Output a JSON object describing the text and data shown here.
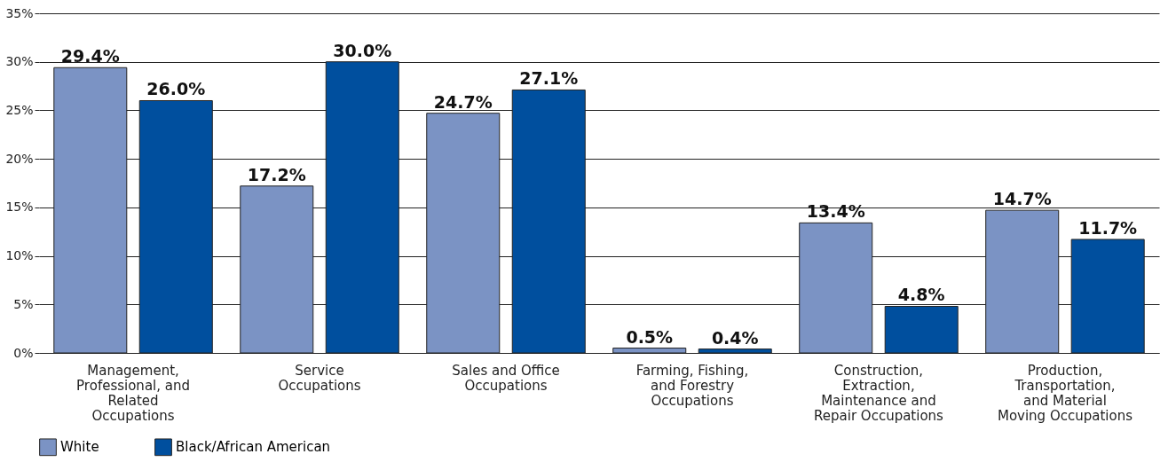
{
  "chart_data": {
    "type": "bar",
    "categories": [
      "Management, Professional, and Related Occupations",
      "Service Occupations",
      "Sales and Office Occupations",
      "Farming, Fishing, and Forestry Occupations",
      "Construction, Extraction, Maintenance and Repair Occupations",
      "Production, Transportation, and Material Moving Occupations"
    ],
    "series": [
      {
        "name": "White",
        "color": "#7b93c4",
        "values": [
          29.4,
          17.2,
          24.7,
          0.5,
          13.4,
          14.7
        ],
        "value_labels": [
          "29.4%",
          "17.2%",
          "24.7%",
          "0.5%",
          "13.4%",
          "14.7%"
        ]
      },
      {
        "name": "Black/African American",
        "color": "#004f9e",
        "values": [
          26.0,
          30.0,
          27.1,
          0.4,
          4.8,
          11.7
        ],
        "value_labels": [
          "26.0%",
          "30.0%",
          "27.1%",
          "0.4%",
          "4.8%",
          "11.7%"
        ]
      }
    ],
    "ylim": [
      0,
      35
    ],
    "yticks": [
      {
        "value": 0,
        "label": "0%"
      },
      {
        "value": 5,
        "label": "5%"
      },
      {
        "value": 10,
        "label": "10%"
      },
      {
        "value": 15,
        "label": "15%"
      },
      {
        "value": 20,
        "label": "20%"
      },
      {
        "value": 25,
        "label": "25%"
      },
      {
        "value": 30,
        "label": "30%"
      },
      {
        "value": 35,
        "label": "35%"
      }
    ],
    "grid": "y",
    "legend": "bottom left"
  }
}
